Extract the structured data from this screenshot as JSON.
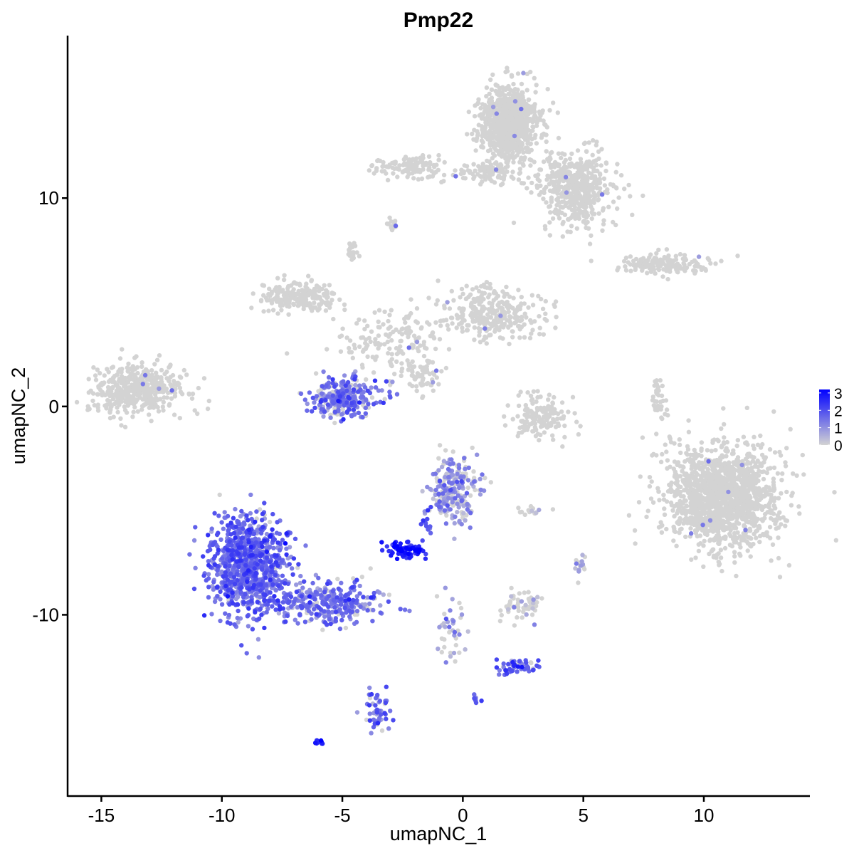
{
  "chart_data": {
    "type": "scatter",
    "title": "Pmp22",
    "xlabel": "umapNC_1",
    "ylabel": "umapNC_2",
    "xlim": [
      -16.4,
      14.4
    ],
    "ylim": [
      -18.7,
      17.8
    ],
    "xticks": [
      -15,
      -10,
      -5,
      0,
      5,
      10
    ],
    "yticks": [
      -10,
      0,
      10
    ],
    "grid": false,
    "legend": {
      "placement": "right",
      "type": "colorbar",
      "ticks": [
        0,
        1,
        2,
        3
      ],
      "range": [
        0,
        3.2
      ],
      "low_color": "#d3d3d3",
      "high_color": "#0000ff"
    },
    "clusters": [
      {
        "center": [
          1.9,
          13.6
        ],
        "spread": [
          0.6,
          0.9
        ],
        "n": 900,
        "expr": 0,
        "frac_expressing": 0.01
      },
      {
        "center": [
          4.7,
          10.5
        ],
        "spread": [
          0.8,
          0.9
        ],
        "n": 500,
        "expr": 0,
        "frac_expressing": 0.005
      },
      {
        "center": [
          -2.2,
          11.5
        ],
        "spread": [
          0.7,
          0.3
        ],
        "n": 120,
        "expr": 0,
        "frac_expressing": 0.01
      },
      {
        "center": [
          1.0,
          11.2
        ],
        "spread": [
          0.7,
          0.25
        ],
        "n": 80,
        "expr": 0,
        "frac_expressing": 0.02
      },
      {
        "center": [
          -2.9,
          8.7
        ],
        "spread": [
          0.1,
          0.15
        ],
        "n": 15,
        "expr": 0,
        "frac_expressing": 0.1
      },
      {
        "center": [
          -4.6,
          7.5
        ],
        "spread": [
          0.12,
          0.25
        ],
        "n": 25,
        "expr": 0,
        "frac_expressing": 0
      },
      {
        "center": [
          8.3,
          6.8
        ],
        "spread": [
          1.0,
          0.25
        ],
        "n": 150,
        "expr": 0,
        "frac_expressing": 0.02
      },
      {
        "center": [
          -13.5,
          0.8
        ],
        "spread": [
          0.9,
          0.6
        ],
        "n": 450,
        "expr": 0,
        "frac_expressing": 0.01
      },
      {
        "center": [
          -6.8,
          5.3
        ],
        "spread": [
          0.8,
          0.4
        ],
        "n": 200,
        "expr": 0,
        "frac_expressing": 0
      },
      {
        "center": [
          1.2,
          4.5
        ],
        "spread": [
          1.1,
          0.6
        ],
        "n": 300,
        "expr": 0,
        "frac_expressing": 0.01
      },
      {
        "center": [
          -3.0,
          3.2
        ],
        "spread": [
          1.2,
          0.8
        ],
        "n": 150,
        "expr": 0,
        "frac_expressing": 0.03
      },
      {
        "center": [
          -5.0,
          0.4
        ],
        "spread": [
          0.7,
          0.5
        ],
        "n": 300,
        "expr": 1.4,
        "frac_expressing": 0.75
      },
      {
        "center": [
          -1.7,
          1.5
        ],
        "spread": [
          0.4,
          0.5
        ],
        "n": 60,
        "expr": 0,
        "frac_expressing": 0.05
      },
      {
        "center": [
          3.2,
          -0.5
        ],
        "spread": [
          0.6,
          0.5
        ],
        "n": 150,
        "expr": 0,
        "frac_expressing": 0.01
      },
      {
        "center": [
          8.1,
          0.2
        ],
        "spread": [
          0.15,
          0.6
        ],
        "n": 40,
        "expr": 0,
        "frac_expressing": 0.03
      },
      {
        "center": [
          10.8,
          -4.3
        ],
        "spread": [
          1.2,
          1.2
        ],
        "n": 1500,
        "expr": 0,
        "frac_expressing": 0.005
      },
      {
        "center": [
          -8.9,
          -7.6
        ],
        "spread": [
          0.8,
          1.2
        ],
        "n": 900,
        "expr": 1.6,
        "frac_expressing": 0.95
      },
      {
        "center": [
          -5.5,
          -9.5
        ],
        "spread": [
          1.1,
          0.5
        ],
        "n": 300,
        "expr": 1.5,
        "frac_expressing": 0.85
      },
      {
        "center": [
          -0.4,
          -4.0
        ],
        "spread": [
          0.5,
          0.8
        ],
        "n": 250,
        "expr": 1.0,
        "frac_expressing": 0.6
      },
      {
        "center": [
          -2.4,
          -6.9
        ],
        "spread": [
          0.4,
          0.2
        ],
        "n": 80,
        "expr": 2.7,
        "frac_expressing": 1
      },
      {
        "center": [
          -1.5,
          -5.6
        ],
        "spread": [
          0.15,
          0.5
        ],
        "n": 15,
        "expr": 2.0,
        "frac_expressing": 1
      },
      {
        "center": [
          -0.5,
          -10.8
        ],
        "spread": [
          0.3,
          0.9
        ],
        "n": 40,
        "expr": 0.9,
        "frac_expressing": 0.6
      },
      {
        "center": [
          2.3,
          -12.5
        ],
        "spread": [
          0.5,
          0.2
        ],
        "n": 50,
        "expr": 1.8,
        "frac_expressing": 0.9
      },
      {
        "center": [
          2.5,
          -9.6
        ],
        "spread": [
          0.4,
          0.4
        ],
        "n": 60,
        "expr": 0.6,
        "frac_expressing": 0.15
      },
      {
        "center": [
          -3.5,
          -14.7
        ],
        "spread": [
          0.25,
          0.6
        ],
        "n": 50,
        "expr": 1.5,
        "frac_expressing": 0.9
      },
      {
        "center": [
          -6.0,
          -16.1
        ],
        "spread": [
          0.1,
          0.05
        ],
        "n": 10,
        "expr": 2.7,
        "frac_expressing": 1
      },
      {
        "center": [
          0.5,
          -14.1
        ],
        "spread": [
          0.05,
          0.1
        ],
        "n": 8,
        "expr": 1.8,
        "frac_expressing": 1
      },
      {
        "center": [
          4.9,
          -7.6
        ],
        "spread": [
          0.15,
          0.3
        ],
        "n": 15,
        "expr": 0.6,
        "frac_expressing": 0.5
      },
      {
        "center": [
          2.7,
          -5.0
        ],
        "spread": [
          0.3,
          0.1
        ],
        "n": 15,
        "expr": 0.5,
        "frac_expressing": 0.4
      }
    ]
  }
}
